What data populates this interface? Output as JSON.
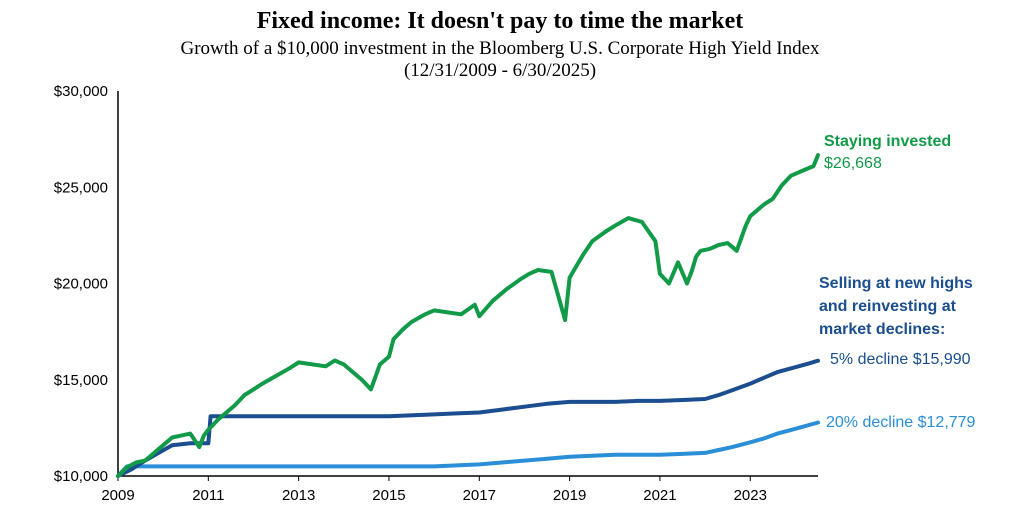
{
  "chart_data": {
    "type": "line",
    "title": "Fixed income: It doesn't pay to time the market",
    "subtitle": "Growth of a $10,000 investment in the Bloomberg U.S. Corporate High Yield Index",
    "subtitle2": "(12/31/2009 - 6/30/2025)",
    "xlabel": "",
    "ylabel": "",
    "xlim": [
      2009,
      2024.5
    ],
    "ylim": [
      10000,
      30000
    ],
    "x_ticks": [
      "2009",
      "2011",
      "2013",
      "2015",
      "2017",
      "2019",
      "2021",
      "2023"
    ],
    "x_tick_values": [
      2009,
      2011,
      2013,
      2015,
      2017,
      2019,
      2021,
      2023
    ],
    "y_ticks": [
      "$10,000",
      "$15,000",
      "$20,000",
      "$25,000",
      "$30,000"
    ],
    "y_tick_values": [
      10000,
      15000,
      20000,
      25000,
      30000
    ],
    "grid": false,
    "series": [
      {
        "name": "Staying invested",
        "color": "#119a48",
        "x": [
          2009.0,
          2009.2,
          2009.4,
          2009.6,
          2009.8,
          2010.0,
          2010.2,
          2010.4,
          2010.6,
          2010.8,
          2010.9,
          2011.0,
          2011.2,
          2011.4,
          2011.6,
          2011.8,
          2012.0,
          2012.2,
          2012.5,
          2012.8,
          2013.0,
          2013.3,
          2013.6,
          2013.8,
          2014.0,
          2014.2,
          2014.4,
          2014.6,
          2014.8,
          2015.0,
          2015.1,
          2015.3,
          2015.5,
          2015.8,
          2016.0,
          2016.3,
          2016.6,
          2016.9,
          2017.0,
          2017.3,
          2017.6,
          2017.9,
          2018.1,
          2018.3,
          2018.6,
          2018.9,
          2019.0,
          2019.1,
          2019.3,
          2019.5,
          2019.8,
          2020.0,
          2020.3,
          2020.6,
          2020.9,
          2021.0,
          2021.2,
          2021.4,
          2021.6,
          2021.7,
          2021.8,
          2021.9,
          2022.1,
          2022.3,
          2022.5,
          2022.7,
          2022.9,
          2023.0,
          2023.1,
          2023.3,
          2023.5,
          2023.7,
          2023.9,
          2024.0,
          2024.2,
          2024.4,
          2024.5
        ],
        "values": [
          10000,
          10450,
          10700,
          10800,
          11200,
          11600,
          12000,
          12100,
          12200,
          11500,
          12100,
          12400,
          12900,
          13300,
          13700,
          14200,
          14500,
          14800,
          15200,
          15600,
          15900,
          15800,
          15700,
          16000,
          15800,
          15400,
          15000,
          14500,
          15800,
          16200,
          17100,
          17600,
          18000,
          18400,
          18600,
          18500,
          18400,
          18900,
          18300,
          19100,
          19700,
          20200,
          20500,
          20700,
          20600,
          18100,
          20300,
          20700,
          21500,
          22200,
          22700,
          23000,
          23400,
          23200,
          22200,
          20500,
          20000,
          21100,
          20000,
          20600,
          21400,
          21700,
          21800,
          22000,
          22100,
          21700,
          23000,
          23500,
          23700,
          24100,
          24400,
          25100,
          25600,
          25700,
          25900,
          26100,
          26668
        ]
      },
      {
        "name": "5% decline",
        "color": "#1a4e8f",
        "x": [
          2009.0,
          2009.3,
          2009.6,
          2009.9,
          2010.2,
          2010.6,
          2011.0,
          2011.05,
          2011.5,
          2012.0,
          2013.0,
          2014.0,
          2015.0,
          2016.0,
          2016.5,
          2017.0,
          2017.5,
          2018.0,
          2018.5,
          2019.0,
          2019.5,
          2020.0,
          2020.5,
          2021.0,
          2021.5,
          2022.0,
          2022.3,
          2022.6,
          2023.0,
          2023.3,
          2023.6,
          2024.0,
          2024.3,
          2024.5
        ],
        "values": [
          10000,
          10350,
          10800,
          11200,
          11600,
          11700,
          11700,
          13100,
          13100,
          13100,
          13100,
          13100,
          13100,
          13200,
          13250,
          13300,
          13450,
          13600,
          13750,
          13850,
          13850,
          13850,
          13900,
          13900,
          13950,
          14000,
          14200,
          14450,
          14800,
          15100,
          15400,
          15650,
          15850,
          15990
        ]
      },
      {
        "name": "20% decline",
        "color": "#2a8fd6",
        "x": [
          2009.0,
          2009.2,
          2010.0,
          2011.0,
          2012.0,
          2013.0,
          2014.0,
          2015.0,
          2016.0,
          2016.5,
          2017.0,
          2017.5,
          2018.0,
          2018.5,
          2019.0,
          2019.5,
          2020.0,
          2020.5,
          2021.0,
          2021.5,
          2022.0,
          2022.3,
          2022.6,
          2023.0,
          2023.3,
          2023.6,
          2024.0,
          2024.3,
          2024.5
        ],
        "values": [
          10000,
          10500,
          10500,
          10500,
          10500,
          10500,
          10500,
          10500,
          10500,
          10550,
          10600,
          10700,
          10800,
          10900,
          11000,
          11050,
          11100,
          11100,
          11100,
          11150,
          11200,
          11350,
          11500,
          11750,
          11950,
          12200,
          12450,
          12650,
          12779
        ]
      }
    ],
    "annotations": {
      "staying_label": "Staying invested",
      "staying_value": "$26,668",
      "selling_lines": [
        "Selling at new highs",
        "and reinvesting at",
        "market declines:"
      ],
      "decline5_label": "5% decline $15,990",
      "decline20_label": "20% decline $12,779"
    }
  }
}
